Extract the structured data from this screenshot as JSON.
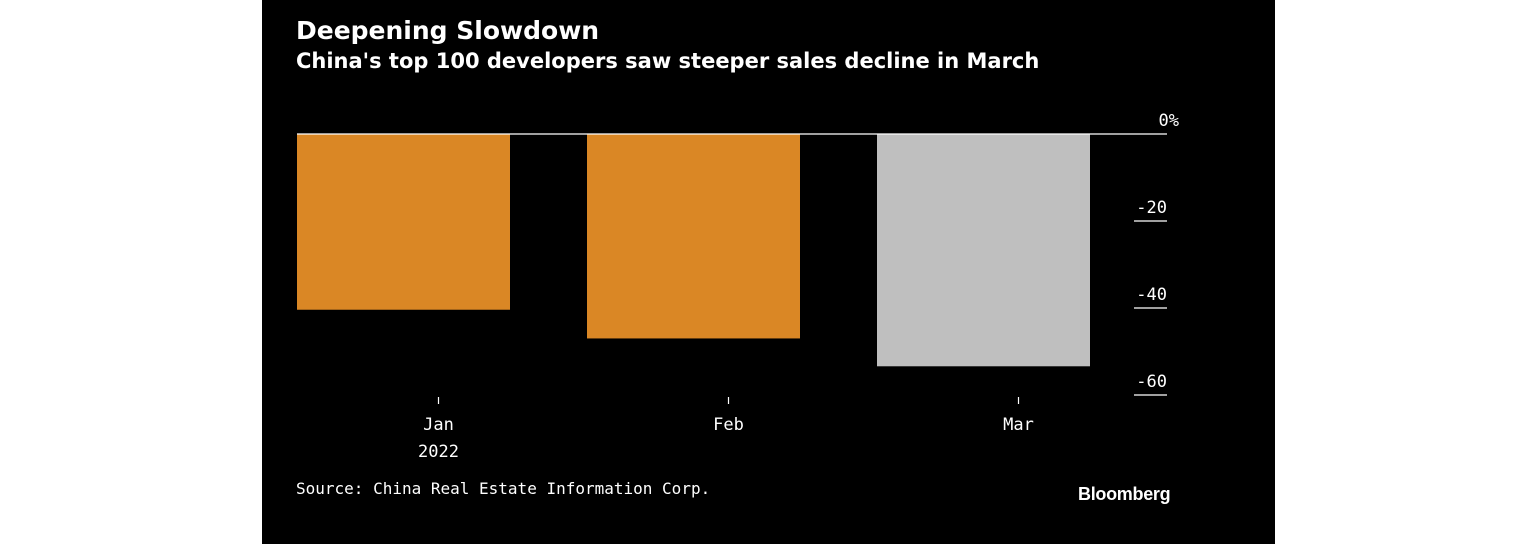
{
  "header": {
    "title": "Deepening Slowdown",
    "subtitle": "China's top 100 developers saw steeper sales decline in March"
  },
  "footer": {
    "source": "Source: China Real Estate Information Corp.",
    "logo": "Bloomberg"
  },
  "colors": {
    "background": "#000000",
    "highlight": "#DA8725",
    "latest": "#BFBFBF",
    "text": "#FFFFFF"
  },
  "chart_data": {
    "type": "bar",
    "title": "Deepening Slowdown",
    "subtitle": "China's top 100 developers saw steeper sales decline in March",
    "categories": [
      "Jan",
      "Feb",
      "Mar"
    ],
    "category_sublabels": [
      "2022",
      "",
      ""
    ],
    "values": [
      -40.4,
      -47.0,
      -53.4
    ],
    "bar_colors": [
      "#DA8725",
      "#DA8725",
      "#BFBFBF"
    ],
    "ylim": [
      -60,
      0
    ],
    "yticks": [
      0,
      -20,
      -40,
      -60
    ],
    "ytick_labels": [
      "0%",
      "-20",
      "-40",
      "-60"
    ],
    "y_axis_side": "right",
    "xlabel": "",
    "ylabel": "",
    "grid": false,
    "source": "Source: China Real Estate Information Corp."
  }
}
